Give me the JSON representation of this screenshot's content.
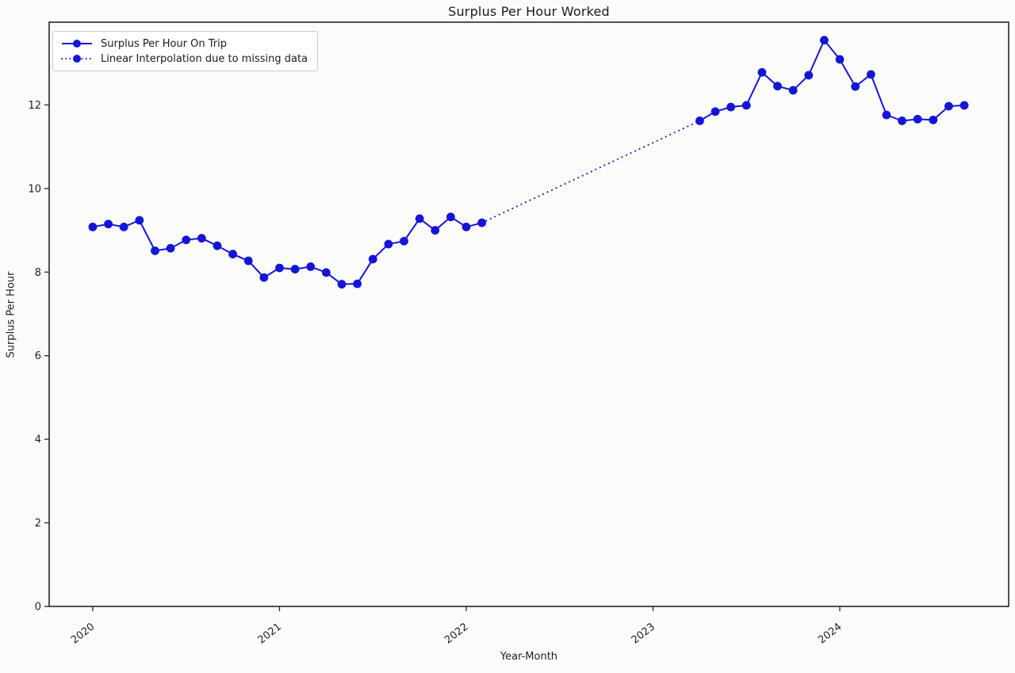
{
  "figure": {
    "background": "#fbfbfa",
    "spine_color": "#262626",
    "tick_color": "#262626",
    "text_color": "#1f1f1f",
    "accent_blue": "#1515d6"
  },
  "chart_data": {
    "type": "line",
    "title": "Surplus Per Hour Worked",
    "xlabel": "Year-Month",
    "ylabel": "Surplus Per Hour",
    "grid": false,
    "legend_position": "upper-left",
    "ylim": [
      0,
      13.98
    ],
    "yticks": [
      0,
      2,
      4,
      6,
      8,
      10,
      12
    ],
    "xlim_month_index": [
      -2.8,
      58.85
    ],
    "xticks": [
      {
        "label": "2020",
        "month_index": 0
      },
      {
        "label": "2021",
        "month_index": 12
      },
      {
        "label": "2022",
        "month_index": 24
      },
      {
        "label": "2023",
        "month_index": 36
      },
      {
        "label": "2024",
        "month_index": 48
      }
    ],
    "legend": [
      {
        "label": "Surplus Per Hour On Trip",
        "style": "solid-marker"
      },
      {
        "label": "Linear Interpolation due to missing data",
        "style": "dotted-marker"
      }
    ],
    "series": [
      {
        "name": "Surplus Per Hour On Trip",
        "segment": "2020-01 to 2022-02",
        "style": "solid",
        "markers": true,
        "color": "#1515d6",
        "points": [
          {
            "x": "2020-01",
            "y": 9.08
          },
          {
            "x": "2020-02",
            "y": 9.15
          },
          {
            "x": "2020-03",
            "y": 9.08
          },
          {
            "x": "2020-04",
            "y": 9.24
          },
          {
            "x": "2020-05",
            "y": 8.51
          },
          {
            "x": "2020-06",
            "y": 8.57
          },
          {
            "x": "2020-07",
            "y": 8.77
          },
          {
            "x": "2020-08",
            "y": 8.81
          },
          {
            "x": "2020-09",
            "y": 8.63
          },
          {
            "x": "2020-10",
            "y": 8.43
          },
          {
            "x": "2020-11",
            "y": 8.27
          },
          {
            "x": "2020-12",
            "y": 7.87
          },
          {
            "x": "2021-01",
            "y": 8.1
          },
          {
            "x": "2021-02",
            "y": 8.07
          },
          {
            "x": "2021-03",
            "y": 8.13
          },
          {
            "x": "2021-04",
            "y": 7.99
          },
          {
            "x": "2021-05",
            "y": 7.71
          },
          {
            "x": "2021-06",
            "y": 7.72
          },
          {
            "x": "2021-07",
            "y": 8.31
          },
          {
            "x": "2021-08",
            "y": 8.67
          },
          {
            "x": "2021-09",
            "y": 8.74
          },
          {
            "x": "2021-10",
            "y": 9.28
          },
          {
            "x": "2021-11",
            "y": 9.0
          },
          {
            "x": "2021-12",
            "y": 9.32
          },
          {
            "x": "2022-01",
            "y": 9.08
          },
          {
            "x": "2022-02",
            "y": 9.18
          }
        ]
      },
      {
        "name": "Linear Interpolation due to missing data",
        "segment": "2022-02 to 2023-04",
        "style": "dotted",
        "markers": false,
        "color": "#1515d6",
        "points": [
          {
            "x": "2022-02",
            "y": 9.18
          },
          {
            "x": "2023-04",
            "y": 11.62
          }
        ]
      },
      {
        "name": "Surplus Per Hour On Trip",
        "segment": "2023-04 to 2024-09",
        "style": "solid",
        "markers": true,
        "color": "#1515d6",
        "points": [
          {
            "x": "2023-04",
            "y": 11.62
          },
          {
            "x": "2023-05",
            "y": 11.84
          },
          {
            "x": "2023-06",
            "y": 11.95
          },
          {
            "x": "2023-07",
            "y": 11.99
          },
          {
            "x": "2023-08",
            "y": 12.78
          },
          {
            "x": "2023-09",
            "y": 12.45
          },
          {
            "x": "2023-10",
            "y": 12.35
          },
          {
            "x": "2023-11",
            "y": 12.71
          },
          {
            "x": "2023-12",
            "y": 13.55
          },
          {
            "x": "2024-01",
            "y": 13.09
          },
          {
            "x": "2024-02",
            "y": 12.44
          },
          {
            "x": "2024-03",
            "y": 12.73
          },
          {
            "x": "2024-04",
            "y": 11.76
          },
          {
            "x": "2024-05",
            "y": 11.62
          },
          {
            "x": "2024-06",
            "y": 11.66
          },
          {
            "x": "2024-07",
            "y": 11.64
          },
          {
            "x": "2024-08",
            "y": 11.97
          },
          {
            "x": "2024-09",
            "y": 11.99
          }
        ]
      }
    ]
  }
}
